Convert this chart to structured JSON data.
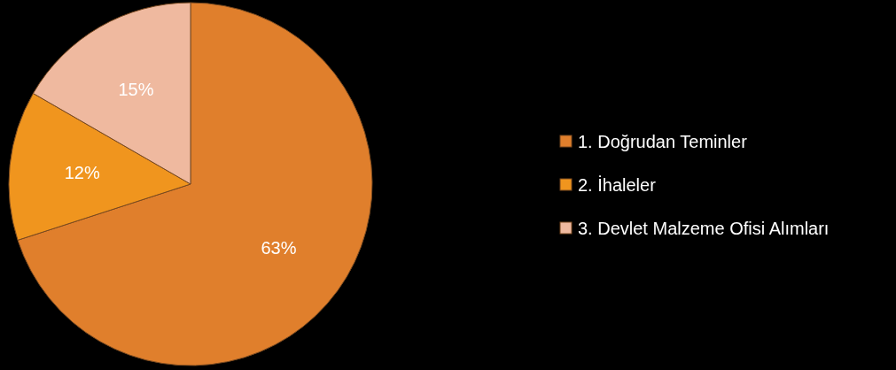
{
  "chart_data": {
    "type": "pie",
    "categories": [
      "1. Doğrudan Teminler",
      "2. İhaleler",
      "3. Devlet Malzeme Ofisi Alımları"
    ],
    "values": [
      63,
      12,
      15
    ],
    "colors": [
      "#e07f2c",
      "#f0951e",
      "#efb99f"
    ],
    "value_labels": [
      "63%",
      "12%",
      "15%"
    ],
    "legend": "right"
  }
}
